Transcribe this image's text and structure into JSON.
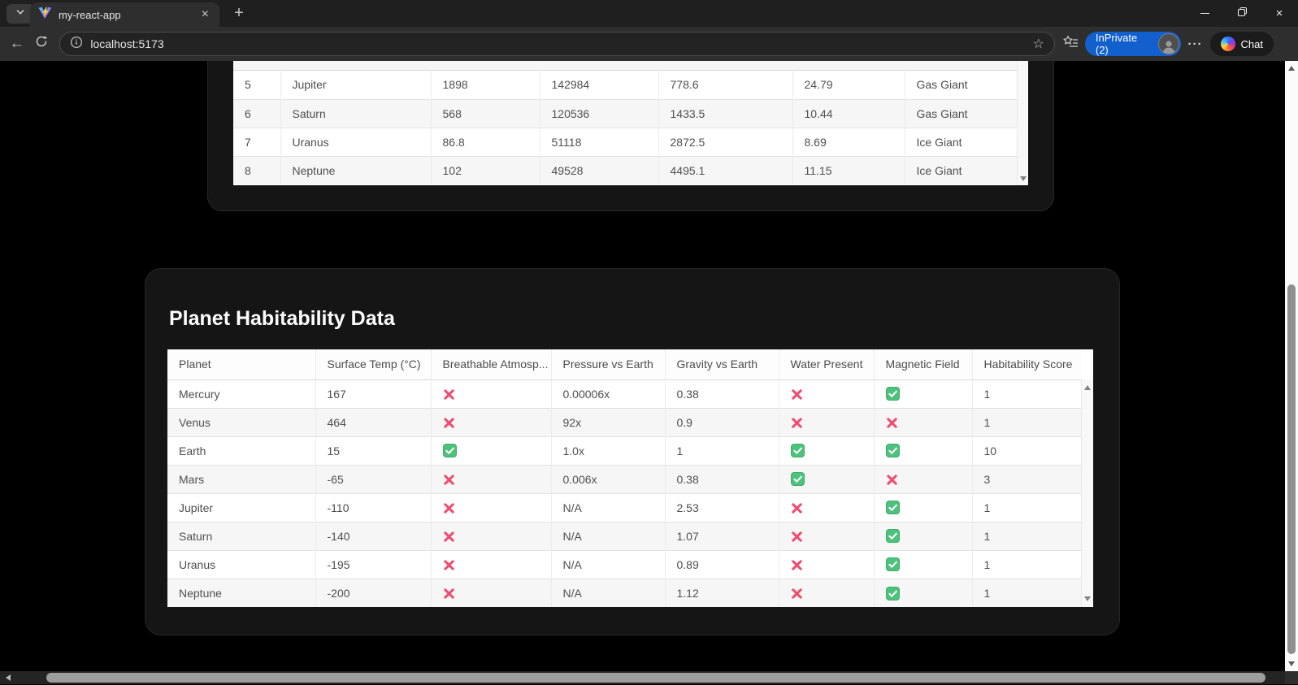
{
  "browser": {
    "tab_title": "my-react-app",
    "url": "localhost:5173",
    "inprivate_label": "InPrivate (2)",
    "chat_label": "Chat"
  },
  "icons": {
    "back": "←",
    "star": "☆",
    "more": "···",
    "new_tab": "+",
    "tab_close": "×",
    "window_close": "×"
  },
  "colors": {
    "check_green": "#4dc27d",
    "check_border": "#3fae69",
    "cross_pink": "#ef4b6e",
    "inprivate_blue": "#1160ce"
  },
  "planets_table": {
    "columns": [
      {
        "key": "num",
        "label": ""
      },
      {
        "key": "name",
        "label": ""
      },
      {
        "key": "mass",
        "label": ""
      },
      {
        "key": "diameter",
        "label": ""
      },
      {
        "key": "distance",
        "label": ""
      },
      {
        "key": "gravity",
        "label": ""
      },
      {
        "key": "type",
        "label": ""
      }
    ],
    "rows": [
      {
        "num": "5",
        "name": "Jupiter",
        "mass": "1898",
        "diameter": "142984",
        "distance": "778.6",
        "gravity": "24.79",
        "type": "Gas Giant"
      },
      {
        "num": "6",
        "name": "Saturn",
        "mass": "568",
        "diameter": "120536",
        "distance": "1433.5",
        "gravity": "10.44",
        "type": "Gas Giant"
      },
      {
        "num": "7",
        "name": "Uranus",
        "mass": "86.8",
        "diameter": "51118",
        "distance": "2872.5",
        "gravity": "8.69",
        "type": "Ice Giant"
      },
      {
        "num": "8",
        "name": "Neptune",
        "mass": "102",
        "diameter": "49528",
        "distance": "4495.1",
        "gravity": "11.15",
        "type": "Ice Giant"
      }
    ]
  },
  "habitability": {
    "title": "Planet Habitability Data",
    "columns": [
      {
        "key": "planet",
        "label": "Planet"
      },
      {
        "key": "temp",
        "label": "Surface Temp (°C)"
      },
      {
        "key": "breathable",
        "label": "Breathable Atmosp...",
        "type": "bool"
      },
      {
        "key": "pressure",
        "label": "Pressure vs Earth"
      },
      {
        "key": "gravity_vs",
        "label": "Gravity vs Earth"
      },
      {
        "key": "water",
        "label": "Water Present",
        "type": "bool"
      },
      {
        "key": "magnetic",
        "label": "Magnetic Field",
        "type": "bool"
      },
      {
        "key": "score",
        "label": "Habitability Score"
      }
    ],
    "rows": [
      {
        "planet": "Mercury",
        "temp": "167",
        "breathable": "no",
        "pressure": "0.00006x",
        "gravity_vs": "0.38",
        "water": "no",
        "magnetic": "yes",
        "score": "1"
      },
      {
        "planet": "Venus",
        "temp": "464",
        "breathable": "no",
        "pressure": "92x",
        "gravity_vs": "0.9",
        "water": "no",
        "magnetic": "no",
        "score": "1"
      },
      {
        "planet": "Earth",
        "temp": "15",
        "breathable": "yes",
        "pressure": "1.0x",
        "gravity_vs": "1",
        "water": "yes",
        "magnetic": "yes",
        "score": "10"
      },
      {
        "planet": "Mars",
        "temp": "-65",
        "breathable": "no",
        "pressure": "0.006x",
        "gravity_vs": "0.38",
        "water": "yes",
        "magnetic": "no",
        "score": "3"
      },
      {
        "planet": "Jupiter",
        "temp": "-110",
        "breathable": "no",
        "pressure": "N/A",
        "gravity_vs": "2.53",
        "water": "no",
        "magnetic": "yes",
        "score": "1"
      },
      {
        "planet": "Saturn",
        "temp": "-140",
        "breathable": "no",
        "pressure": "N/A",
        "gravity_vs": "1.07",
        "water": "no",
        "magnetic": "yes",
        "score": "1"
      },
      {
        "planet": "Uranus",
        "temp": "-195",
        "breathable": "no",
        "pressure": "N/A",
        "gravity_vs": "0.89",
        "water": "no",
        "magnetic": "yes",
        "score": "1"
      },
      {
        "planet": "Neptune",
        "temp": "-200",
        "breathable": "no",
        "pressure": "N/A",
        "gravity_vs": "1.12",
        "water": "no",
        "magnetic": "yes",
        "score": "1"
      }
    ]
  }
}
